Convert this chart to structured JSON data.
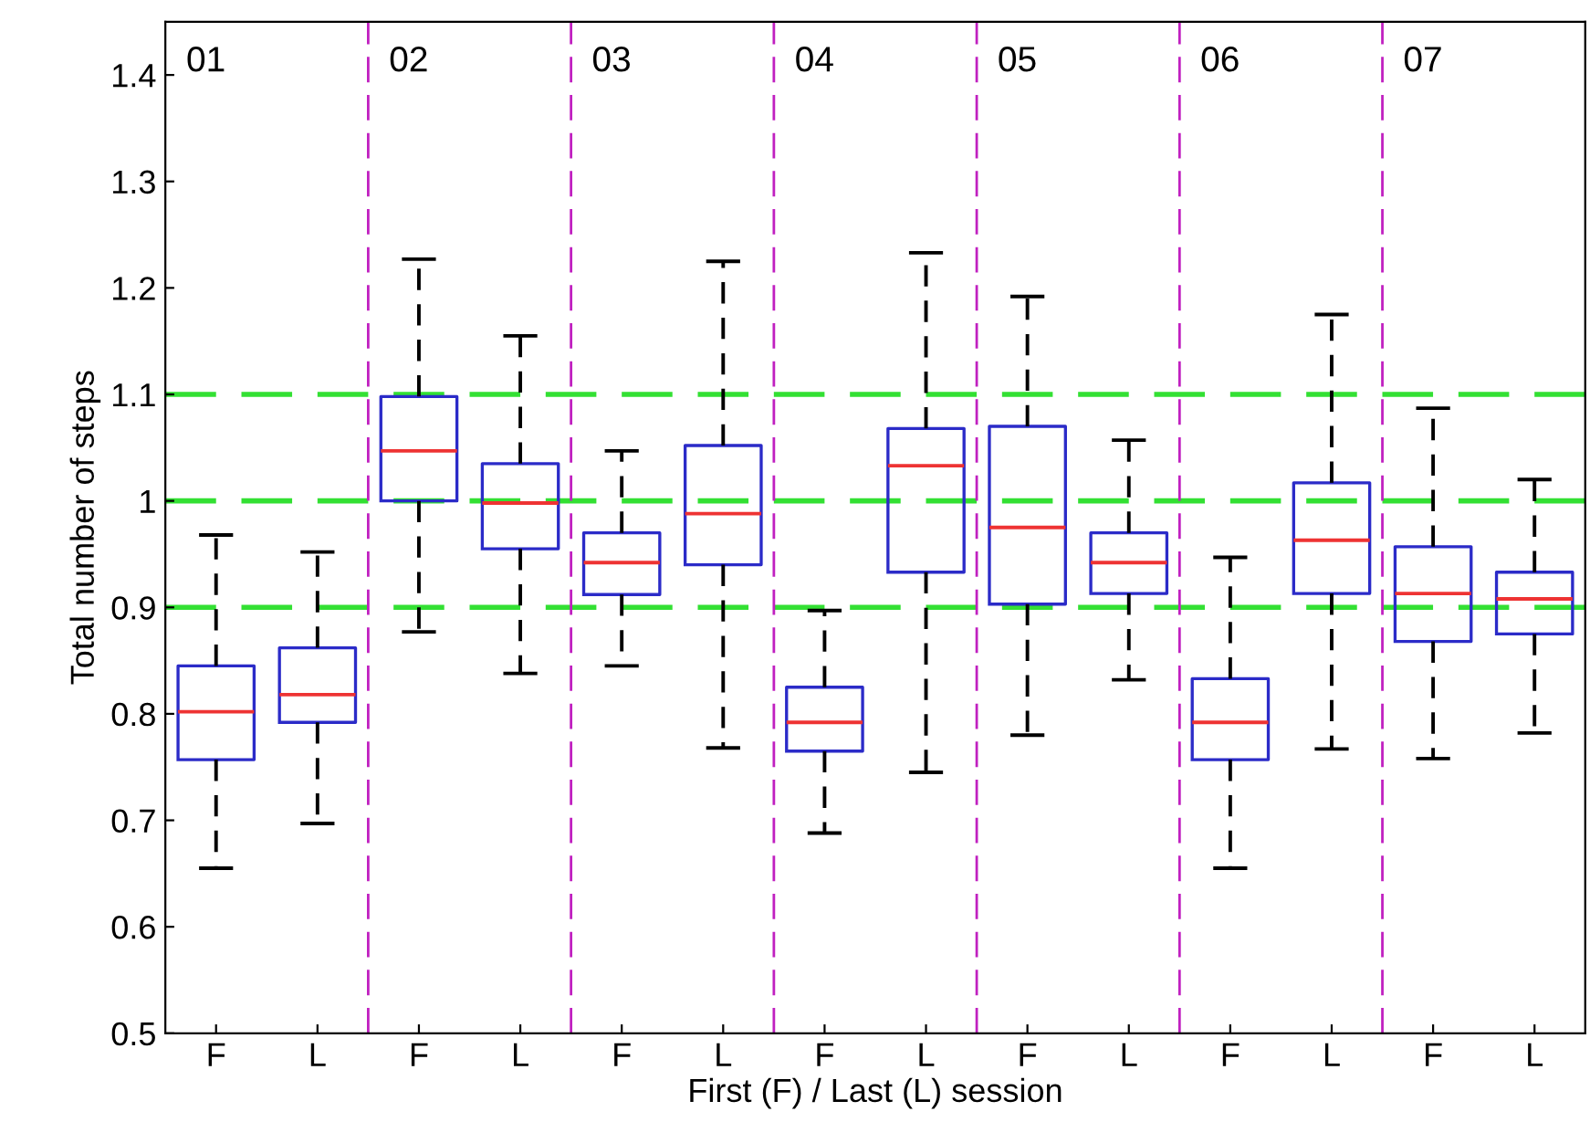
{
  "chart_data": {
    "type": "box",
    "xlabel": "First (F) / Last (L) session",
    "ylabel": "Total number of steps",
    "categories": [
      "F",
      "L",
      "F",
      "L",
      "F",
      "L",
      "F",
      "L",
      "F",
      "L",
      "F",
      "L",
      "F",
      "L"
    ],
    "ylim": [
      0.5,
      1.45
    ],
    "yticks": [
      0.5,
      0.6,
      0.7,
      0.8,
      0.9,
      1,
      1.1,
      1.2,
      1.3,
      1.4
    ],
    "color": "#2b2bc8",
    "boxes": [
      {
        "low": 0.655,
        "q1": 0.757,
        "median": 0.802,
        "q3": 0.845,
        "high": 0.968
      },
      {
        "low": 0.697,
        "q1": 0.792,
        "median": 0.818,
        "q3": 0.862,
        "high": 0.952
      },
      {
        "low": 0.877,
        "q1": 1.0,
        "median": 1.047,
        "q3": 1.098,
        "high": 1.227
      },
      {
        "low": 0.838,
        "q1": 0.955,
        "median": 0.998,
        "q3": 1.035,
        "high": 1.155
      },
      {
        "low": 0.845,
        "q1": 0.912,
        "median": 0.942,
        "q3": 0.97,
        "high": 1.047
      },
      {
        "low": 0.768,
        "q1": 0.94,
        "median": 0.988,
        "q3": 1.052,
        "high": 1.225
      },
      {
        "low": 0.688,
        "q1": 0.765,
        "median": 0.792,
        "q3": 0.825,
        "high": 0.897
      },
      {
        "low": 0.745,
        "q1": 0.933,
        "median": 1.033,
        "q3": 1.068,
        "high": 1.233
      },
      {
        "low": 0.78,
        "q1": 0.903,
        "median": 0.975,
        "q3": 1.07,
        "high": 1.192
      },
      {
        "low": 0.832,
        "q1": 0.913,
        "median": 0.942,
        "q3": 0.97,
        "high": 1.057
      },
      {
        "low": 0.655,
        "q1": 0.757,
        "median": 0.792,
        "q3": 0.833,
        "high": 0.947
      },
      {
        "low": 0.767,
        "q1": 0.913,
        "median": 0.963,
        "q3": 1.017,
        "high": 1.175
      },
      {
        "low": 0.758,
        "q1": 0.868,
        "median": 0.913,
        "q3": 0.957,
        "high": 1.087
      },
      {
        "low": 0.782,
        "q1": 0.875,
        "median": 0.908,
        "q3": 0.933,
        "high": 1.02
      }
    ],
    "ref_lines": [
      {
        "axis": "y",
        "value": 0.9,
        "color": "#33e033",
        "line_style": "dashed"
      },
      {
        "axis": "y",
        "value": 1,
        "color": "#33e033",
        "line_style": "dashed"
      },
      {
        "axis": "y",
        "value": 1.1,
        "color": "#33e033",
        "line_style": "dashed"
      }
    ],
    "annotations": [
      "01",
      "02",
      "03",
      "04",
      "05",
      "06",
      "07"
    ],
    "grid": false,
    "legend": false
  }
}
